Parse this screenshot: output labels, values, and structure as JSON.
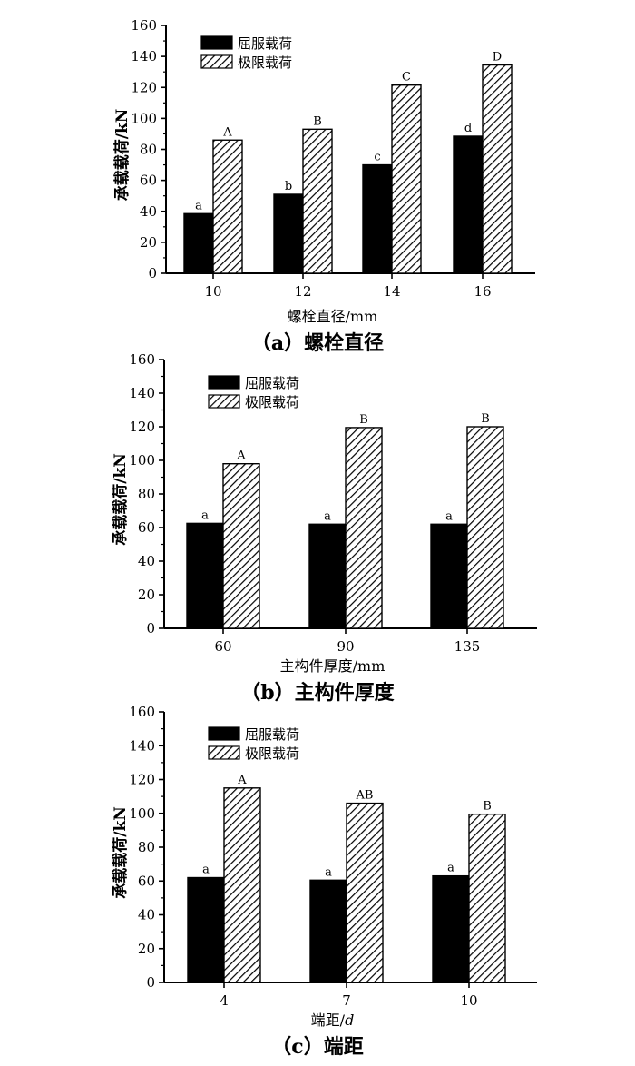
{
  "legend": {
    "yield": "屈服载荷",
    "ultimate": "极限载荷"
  },
  "chart_data": [
    {
      "type": "bar",
      "caption": "（a）螺栓直径",
      "xlabel": "螺栓直径/mm",
      "ylabel": "承载载荷/kN",
      "ylim": [
        0,
        160
      ],
      "yticks": [
        "0",
        "20",
        "40",
        "60",
        "80",
        "100",
        "120",
        "140",
        "160"
      ],
      "categories": [
        "10",
        "12",
        "14",
        "16"
      ],
      "series": [
        {
          "name": "屈服载荷",
          "values": [
            38.5,
            51,
            70,
            88.5
          ],
          "labels": [
            "a",
            "b",
            "c",
            "d"
          ],
          "color": "#000000"
        },
        {
          "name": "极限载荷",
          "values": [
            86,
            93,
            121.5,
            134.5
          ],
          "labels": [
            "A",
            "B",
            "C",
            "D"
          ],
          "color": "hatch"
        }
      ],
      "legend_position": "top-left",
      "grid": false
    },
    {
      "type": "bar",
      "caption": "（b）主构件厚度",
      "xlabel": "主构件厚度/mm",
      "ylabel": "承载载荷/kN",
      "ylim": [
        0,
        160
      ],
      "yticks": [
        "0",
        "20",
        "40",
        "60",
        "80",
        "100",
        "120",
        "140",
        "160"
      ],
      "categories": [
        "60",
        "90",
        "135"
      ],
      "series": [
        {
          "name": "屈服载荷",
          "values": [
            62.5,
            62,
            62
          ],
          "labels": [
            "a",
            "a",
            "a"
          ],
          "color": "#000000"
        },
        {
          "name": "极限载荷",
          "values": [
            98,
            119.5,
            120
          ],
          "labels": [
            "A",
            "B",
            "B"
          ],
          "color": "hatch"
        }
      ],
      "legend_position": "top-left",
      "grid": false
    },
    {
      "type": "bar",
      "caption": "（c）端距",
      "xlabel": "端距/d",
      "ylabel": "承载载荷/kN",
      "ylim": [
        0,
        160
      ],
      "yticks": [
        "0",
        "20",
        "40",
        "60",
        "80",
        "100",
        "120",
        "140",
        "160"
      ],
      "categories": [
        "4",
        "7",
        "10"
      ],
      "series": [
        {
          "name": "屈服载荷",
          "values": [
            62,
            60.5,
            63
          ],
          "labels": [
            "a",
            "a",
            "a"
          ],
          "color": "#000000"
        },
        {
          "name": "极限载荷",
          "values": [
            115,
            106,
            99.5
          ],
          "labels": [
            "A",
            "AB",
            "B"
          ],
          "color": "hatch"
        }
      ],
      "legend_position": "top-left",
      "grid": false
    }
  ]
}
